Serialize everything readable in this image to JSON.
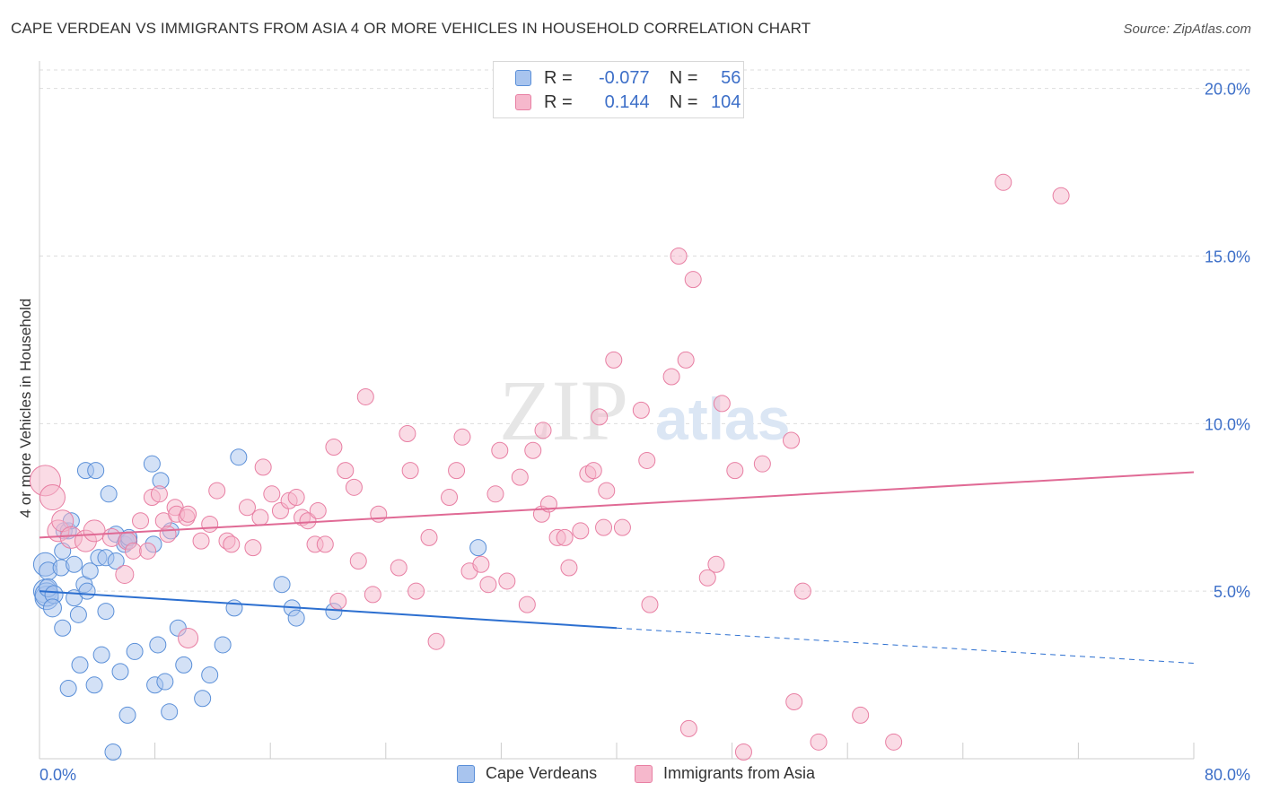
{
  "title": "CAPE VERDEAN VS IMMIGRANTS FROM ASIA 4 OR MORE VEHICLES IN HOUSEHOLD CORRELATION CHART",
  "source": "Source: ZipAtlas.com",
  "watermark": {
    "zip": "ZIP",
    "atlas": "atlas"
  },
  "colors": {
    "blue_fill": "#a8c4ee",
    "blue_stroke": "#5a8fd8",
    "blue_line": "#2c6fd0",
    "pink_fill": "#f6b8cc",
    "pink_stroke": "#e87fa3",
    "pink_line": "#e06a95",
    "axis_text": "#3d6fc8",
    "grid": "#dddddd"
  },
  "legend": {
    "rows": [
      {
        "r_label": "R =",
        "r_value": "-0.077",
        "n_label": "N =",
        "n_value": "56"
      },
      {
        "r_label": "R =",
        "r_value": "0.144",
        "n_label": "N =",
        "n_value": "104"
      }
    ],
    "bottom": [
      "Cape Verdeans",
      "Immigrants from Asia"
    ]
  },
  "chart_data": {
    "type": "scatter",
    "ylabel": "4 or more Vehicles in Household",
    "xlabel": "",
    "xlim": [
      0,
      80
    ],
    "ylim": [
      0,
      20.5
    ],
    "x_tick_labels": [
      "0.0%",
      "80.0%"
    ],
    "y_ticks": [
      5,
      10,
      15,
      20
    ],
    "y_tick_labels": [
      "5.0%",
      "10.0%",
      "15.0%",
      "20.0%"
    ],
    "grid": true,
    "series": [
      {
        "name": "Cape Verdeans",
        "color": "blue",
        "trend": {
          "x0": 0,
          "y0": 5.0,
          "x1": 40,
          "y1": 3.9,
          "dashed_to_x": 80,
          "dashed_to_y": 2.85
        },
        "points": [
          [
            0.4,
            5.8,
            13
          ],
          [
            0.4,
            5.0,
            13
          ],
          [
            0.5,
            4.8,
            13
          ],
          [
            0.5,
            4.9,
            13
          ],
          [
            0.6,
            5.6,
            10
          ],
          [
            0.6,
            5.1,
            10
          ],
          [
            1.0,
            4.9,
            10
          ],
          [
            0.9,
            4.5,
            10
          ],
          [
            1.5,
            5.7,
            9
          ],
          [
            1.6,
            6.2,
            9
          ],
          [
            1.7,
            6.8,
            9
          ],
          [
            2.0,
            6.8,
            9
          ],
          [
            2.2,
            7.1,
            9
          ],
          [
            2.4,
            5.8,
            9
          ],
          [
            2.4,
            4.8,
            9
          ],
          [
            2.7,
            4.3,
            9
          ],
          [
            3.1,
            5.2,
            9
          ],
          [
            3.3,
            5.0,
            9
          ],
          [
            3.5,
            5.6,
            9
          ],
          [
            3.2,
            8.6,
            9
          ],
          [
            3.9,
            8.6,
            9
          ],
          [
            4.1,
            6.0,
            9
          ],
          [
            4.6,
            6.0,
            9
          ],
          [
            4.6,
            4.4,
            9
          ],
          [
            4.8,
            7.9,
            9
          ],
          [
            5.3,
            5.9,
            9
          ],
          [
            5.3,
            6.7,
            9
          ],
          [
            6.0,
            6.5,
            9
          ],
          [
            5.9,
            6.4,
            9
          ],
          [
            6.2,
            6.5,
            9
          ],
          [
            6.2,
            6.6,
            9
          ],
          [
            7.9,
            6.4,
            9
          ],
          [
            7.8,
            8.8,
            9
          ],
          [
            8.4,
            8.3,
            9
          ],
          [
            9.1,
            6.8,
            9
          ],
          [
            1.6,
            3.9,
            9
          ],
          [
            2.8,
            2.8,
            9
          ],
          [
            3.8,
            2.2,
            9
          ],
          [
            4.3,
            3.1,
            9
          ],
          [
            5.6,
            2.6,
            9
          ],
          [
            6.1,
            1.3,
            9
          ],
          [
            6.6,
            3.2,
            9
          ],
          [
            8.0,
            2.2,
            9
          ],
          [
            8.2,
            3.4,
            9
          ],
          [
            8.7,
            2.3,
            9
          ],
          [
            9.0,
            1.4,
            9
          ],
          [
            9.6,
            3.9,
            9
          ],
          [
            10.0,
            2.8,
            9
          ],
          [
            11.3,
            1.8,
            9
          ],
          [
            11.8,
            2.5,
            9
          ],
          [
            12.7,
            3.4,
            9
          ],
          [
            13.5,
            4.5,
            9
          ],
          [
            13.8,
            9.0,
            9
          ],
          [
            16.8,
            5.2,
            9
          ],
          [
            17.5,
            4.5,
            9
          ],
          [
            17.8,
            4.2,
            9
          ],
          [
            20.4,
            4.4,
            9
          ],
          [
            30.4,
            6.3,
            9
          ],
          [
            2.0,
            2.1,
            9
          ],
          [
            5.1,
            0.2,
            9
          ]
        ]
      },
      {
        "name": "Immigrants from Asia",
        "color": "pink",
        "trend": {
          "x0": 0,
          "y0": 6.6,
          "x1": 80,
          "y1": 8.55
        },
        "points": [
          [
            0.4,
            8.3,
            17
          ],
          [
            0.9,
            7.8,
            14
          ],
          [
            1.3,
            6.8,
            12
          ],
          [
            1.6,
            7.1,
            12
          ],
          [
            2.2,
            6.6,
            12
          ],
          [
            3.2,
            6.5,
            12
          ],
          [
            3.8,
            6.8,
            12
          ],
          [
            5.0,
            6.6,
            10
          ],
          [
            5.9,
            5.5,
            10
          ],
          [
            6.1,
            6.5,
            10
          ],
          [
            6.5,
            6.2,
            9
          ],
          [
            7.0,
            7.1,
            9
          ],
          [
            7.5,
            6.2,
            9
          ],
          [
            7.8,
            7.8,
            9
          ],
          [
            8.3,
            7.9,
            9
          ],
          [
            8.6,
            7.1,
            9
          ],
          [
            8.9,
            6.7,
            9
          ],
          [
            9.4,
            7.5,
            9
          ],
          [
            9.5,
            7.3,
            9
          ],
          [
            10.2,
            7.2,
            9
          ],
          [
            10.3,
            7.3,
            9
          ],
          [
            10.3,
            3.6,
            11
          ],
          [
            11.2,
            6.5,
            9
          ],
          [
            11.8,
            7.0,
            9
          ],
          [
            12.3,
            8.0,
            9
          ],
          [
            13.0,
            6.5,
            9
          ],
          [
            13.3,
            6.4,
            9
          ],
          [
            14.4,
            7.5,
            9
          ],
          [
            14.8,
            6.3,
            9
          ],
          [
            15.3,
            7.2,
            9
          ],
          [
            15.5,
            8.7,
            9
          ],
          [
            16.1,
            7.9,
            9
          ],
          [
            16.7,
            7.4,
            9
          ],
          [
            17.3,
            7.7,
            9
          ],
          [
            17.8,
            7.8,
            9
          ],
          [
            18.2,
            7.2,
            9
          ],
          [
            18.6,
            7.1,
            9
          ],
          [
            19.1,
            6.4,
            9
          ],
          [
            19.3,
            7.4,
            9
          ],
          [
            19.8,
            6.4,
            9
          ],
          [
            20.4,
            9.3,
            9
          ],
          [
            20.7,
            4.7,
            9
          ],
          [
            21.2,
            8.6,
            9
          ],
          [
            21.8,
            8.1,
            9
          ],
          [
            22.1,
            5.9,
            9
          ],
          [
            22.6,
            10.8,
            9
          ],
          [
            23.1,
            4.9,
            9
          ],
          [
            23.5,
            7.3,
            9
          ],
          [
            24.9,
            5.7,
            9
          ],
          [
            25.5,
            9.7,
            9
          ],
          [
            25.7,
            8.6,
            9
          ],
          [
            26.1,
            5.0,
            9
          ],
          [
            27.0,
            6.6,
            9
          ],
          [
            27.5,
            3.5,
            9
          ],
          [
            28.4,
            7.8,
            9
          ],
          [
            28.9,
            8.6,
            9
          ],
          [
            29.3,
            9.6,
            9
          ],
          [
            29.8,
            5.6,
            9
          ],
          [
            30.6,
            5.8,
            9
          ],
          [
            31.1,
            5.2,
            9
          ],
          [
            31.6,
            7.9,
            9
          ],
          [
            31.9,
            9.2,
            9
          ],
          [
            32.4,
            5.3,
            9
          ],
          [
            33.3,
            8.4,
            9
          ],
          [
            33.8,
            4.6,
            9
          ],
          [
            34.2,
            9.2,
            9
          ],
          [
            34.8,
            7.3,
            9
          ],
          [
            34.9,
            9.8,
            9
          ],
          [
            35.3,
            7.6,
            9
          ],
          [
            35.9,
            6.6,
            9
          ],
          [
            36.4,
            6.6,
            9
          ],
          [
            36.7,
            5.7,
            9
          ],
          [
            37.5,
            6.8,
            9
          ],
          [
            38.0,
            8.5,
            9
          ],
          [
            38.4,
            8.6,
            9
          ],
          [
            38.8,
            10.2,
            9
          ],
          [
            39.1,
            6.9,
            9
          ],
          [
            39.3,
            8.0,
            9
          ],
          [
            39.8,
            11.9,
            9
          ],
          [
            40.4,
            6.9,
            9
          ],
          [
            41.7,
            10.4,
            9
          ],
          [
            42.1,
            8.9,
            9
          ],
          [
            42.3,
            4.6,
            9
          ],
          [
            43.8,
            11.4,
            9
          ],
          [
            44.3,
            15.0,
            9
          ],
          [
            44.8,
            11.9,
            9
          ],
          [
            45.0,
            0.9,
            9
          ],
          [
            45.3,
            14.3,
            9
          ],
          [
            46.3,
            5.4,
            9
          ],
          [
            46.9,
            5.8,
            9
          ],
          [
            47.3,
            10.6,
            9
          ],
          [
            48.2,
            8.6,
            9
          ],
          [
            50.1,
            8.8,
            9
          ],
          [
            52.1,
            9.5,
            9
          ],
          [
            52.3,
            1.7,
            9
          ],
          [
            52.9,
            5.0,
            9
          ],
          [
            54.0,
            0.5,
            9
          ],
          [
            56.9,
            1.3,
            9
          ],
          [
            59.2,
            0.5,
            9
          ],
          [
            66.8,
            17.2,
            9
          ],
          [
            70.8,
            16.8,
            9
          ],
          [
            48.8,
            0.2,
            9
          ]
        ]
      }
    ]
  }
}
